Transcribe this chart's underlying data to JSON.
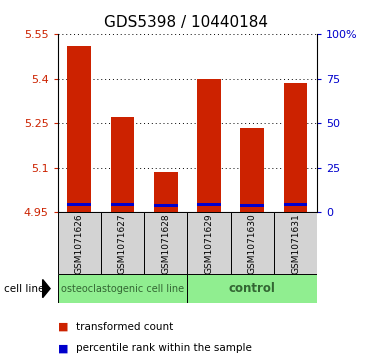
{
  "title": "GDS5398 / 10440184",
  "samples": [
    "GSM1071626",
    "GSM1071627",
    "GSM1071628",
    "GSM1071629",
    "GSM1071630",
    "GSM1071631"
  ],
  "bar_bottoms": [
    4.95,
    4.95,
    4.95,
    4.95,
    4.95,
    4.95
  ],
  "red_tops": [
    5.51,
    5.27,
    5.085,
    5.4,
    5.235,
    5.385
  ],
  "blue_bottoms": [
    4.972,
    4.97,
    4.968,
    4.972,
    4.968,
    4.97
  ],
  "blue_tops": [
    4.982,
    4.98,
    4.978,
    4.982,
    4.978,
    4.98
  ],
  "ylim_left": [
    4.95,
    5.55
  ],
  "ylim_right": [
    0,
    100
  ],
  "yticks_left": [
    4.95,
    5.1,
    5.25,
    5.4,
    5.55
  ],
  "yticks_right": [
    0,
    25,
    50,
    75,
    100
  ],
  "ytick_labels_right": [
    "0",
    "25",
    "50",
    "75",
    "100%"
  ],
  "bar_width": 0.55,
  "cat1_label": "osteoclastogenic cell line",
  "cat2_label": "control",
  "green_color": "#90EE90",
  "cell_line_label": "cell line",
  "legend_items": [
    {
      "color": "#cc2200",
      "label": "transformed count"
    },
    {
      "color": "#0000cc",
      "label": "percentile rank within the sample"
    }
  ],
  "red_color": "#cc2200",
  "blue_color": "#0000cc",
  "label_box_color": "#d3d3d3",
  "title_fontsize": 11,
  "tick_fontsize": 8,
  "sample_fontsize": 6.5,
  "cat_fontsize": 7,
  "legend_fontsize": 7.5
}
